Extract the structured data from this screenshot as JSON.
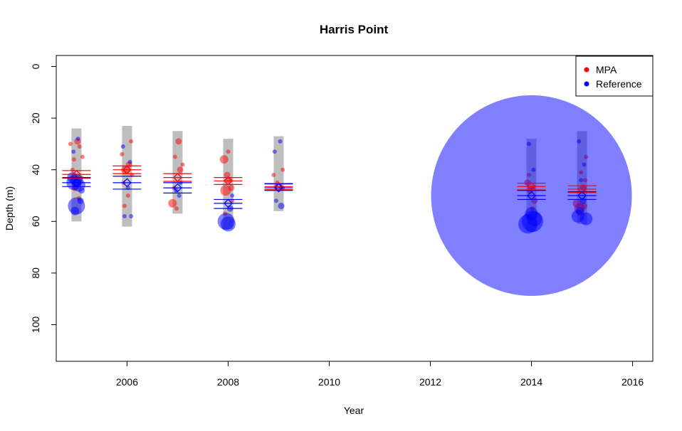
{
  "chart_data": {
    "type": "scatter",
    "title": "Harris Point",
    "xlabel": "Year",
    "ylabel": "Depth (m)",
    "xlim": [
      2004.6,
      2016.4
    ],
    "ylim": [
      0,
      115
    ],
    "y_inverted": true,
    "xticks": [
      2006,
      2008,
      2010,
      2012,
      2014,
      2016
    ],
    "yticks": [
      0,
      20,
      40,
      60,
      80,
      100
    ],
    "legend": {
      "placement": "top-right",
      "entries": [
        {
          "name": "MPA",
          "color": "#ff0000"
        },
        {
          "name": "Reference",
          "color": "#0000ff"
        }
      ]
    },
    "colors": {
      "mpa": "#ff0000",
      "reference": "#0000ff",
      "range_bar": "#bebebe"
    },
    "depth_ranges": [
      {
        "year": 2005,
        "min": 24,
        "max": 60
      },
      {
        "year": 2006,
        "min": 23,
        "max": 62
      },
      {
        "year": 2007,
        "min": 25,
        "max": 57
      },
      {
        "year": 2008,
        "min": 28,
        "max": 63
      },
      {
        "year": 2009,
        "min": 27,
        "max": 56
      },
      {
        "year": 2014,
        "min": 28,
        "max": 64
      },
      {
        "year": 2015,
        "min": 25,
        "max": 61
      }
    ],
    "series": [
      {
        "name": "MPA",
        "means": [
          {
            "year": 2005,
            "mean": 41.8,
            "lo": 40.3,
            "hi": 43.3
          },
          {
            "year": 2006,
            "mean": 40.0,
            "lo": 38.5,
            "hi": 41.5
          },
          {
            "year": 2007,
            "mean": 43.0,
            "lo": 41.5,
            "hi": 44.5
          },
          {
            "year": 2008,
            "mean": 44.3,
            "lo": 43.0,
            "hi": 45.7
          },
          {
            "year": 2009,
            "mean": 46.5,
            "lo": 45.3,
            "hi": 47.7
          },
          {
            "year": 2014,
            "mean": 46.5,
            "lo": 45.2,
            "hi": 47.8
          },
          {
            "year": 2015,
            "mean": 47.5,
            "lo": 46.2,
            "hi": 48.8
          }
        ],
        "points": [
          {
            "x": 2004.88,
            "y": 30,
            "size": 2
          },
          {
            "x": 2004.95,
            "y": 36,
            "size": 2
          },
          {
            "x": 2005.02,
            "y": 29,
            "size": 3
          },
          {
            "x": 2005.06,
            "y": 31,
            "size": 2
          },
          {
            "x": 2004.92,
            "y": 40,
            "size": 2
          },
          {
            "x": 2005.1,
            "y": 43,
            "size": 2
          },
          {
            "x": 2004.97,
            "y": 47,
            "size": 3
          },
          {
            "x": 2005.05,
            "y": 51,
            "size": 2
          },
          {
            "x": 2005.12,
            "y": 35,
            "size": 2
          },
          {
            "x": 2005.9,
            "y": 34,
            "size": 2
          },
          {
            "x": 2005.97,
            "y": 40,
            "size": 4
          },
          {
            "x": 2006.04,
            "y": 38,
            "size": 3
          },
          {
            "x": 2006.08,
            "y": 29,
            "size": 2
          },
          {
            "x": 2005.93,
            "y": 45,
            "size": 2
          },
          {
            "x": 2006.1,
            "y": 42,
            "size": 2
          },
          {
            "x": 2006.02,
            "y": 50,
            "size": 2
          },
          {
            "x": 2005.95,
            "y": 54,
            "size": 2
          },
          {
            "x": 2006.9,
            "y": 53,
            "size": 4
          },
          {
            "x": 2006.95,
            "y": 35,
            "size": 2
          },
          {
            "x": 2007.02,
            "y": 29,
            "size": 3
          },
          {
            "x": 2007.05,
            "y": 40,
            "size": 3
          },
          {
            "x": 2006.93,
            "y": 47,
            "size": 2
          },
          {
            "x": 2007.1,
            "y": 38,
            "size": 2
          },
          {
            "x": 2006.98,
            "y": 55,
            "size": 2
          },
          {
            "x": 2007.92,
            "y": 36,
            "size": 4
          },
          {
            "x": 2007.95,
            "y": 48,
            "size": 5
          },
          {
            "x": 2008.02,
            "y": 44,
            "size": 3
          },
          {
            "x": 2008.06,
            "y": 47,
            "size": 3
          },
          {
            "x": 2008.0,
            "y": 33,
            "size": 2
          },
          {
            "x": 2007.98,
            "y": 42,
            "size": 3
          },
          {
            "x": 2008.08,
            "y": 52,
            "size": 2
          },
          {
            "x": 2007.94,
            "y": 57,
            "size": 2
          },
          {
            "x": 2008.9,
            "y": 42,
            "size": 2
          },
          {
            "x": 2008.97,
            "y": 45,
            "size": 2
          },
          {
            "x": 2009.04,
            "y": 47,
            "size": 2
          },
          {
            "x": 2009.08,
            "y": 40,
            "size": 2
          },
          {
            "x": 2013.92,
            "y": 45,
            "size": 3
          },
          {
            "x": 2013.97,
            "y": 48,
            "size": 3
          },
          {
            "x": 2014.03,
            "y": 47,
            "size": 2
          },
          {
            "x": 2014.06,
            "y": 52,
            "size": 3
          },
          {
            "x": 2013.95,
            "y": 42,
            "size": 2
          },
          {
            "x": 2014.02,
            "y": 55,
            "size": 2
          },
          {
            "x": 2014.9,
            "y": 53,
            "size": 4
          },
          {
            "x": 2014.95,
            "y": 55,
            "size": 5
          },
          {
            "x": 2015.03,
            "y": 47,
            "size": 3
          },
          {
            "x": 2015.06,
            "y": 44,
            "size": 2
          },
          {
            "x": 2014.98,
            "y": 41,
            "size": 2
          },
          {
            "x": 2015.08,
            "y": 35,
            "size": 2
          },
          {
            "x": 2015.04,
            "y": 54,
            "size": 3
          }
        ]
      },
      {
        "name": "Reference",
        "means": [
          {
            "year": 2005,
            "mean": 45.0,
            "lo": 43.0,
            "hi": 46.5
          },
          {
            "year": 2006,
            "mean": 45.0,
            "lo": 42.5,
            "hi": 47.5
          },
          {
            "year": 2007,
            "mean": 47.0,
            "lo": 45.0,
            "hi": 49.0
          },
          {
            "year": 2008,
            "mean": 53.0,
            "lo": 51.5,
            "hi": 55.0
          },
          {
            "year": 2009,
            "mean": 47.0,
            "lo": 45.5,
            "hi": 48.0
          },
          {
            "year": 2014,
            "mean": 50.0,
            "lo": 48.0,
            "hi": 51.5
          },
          {
            "year": 2015,
            "mean": 50.0,
            "lo": 48.5,
            "hi": 51.5
          }
        ],
        "points": [
          {
            "x": 2004.95,
            "y": 45,
            "size": 7
          },
          {
            "x": 2005.0,
            "y": 44,
            "size": 6
          },
          {
            "x": 2005.05,
            "y": 46,
            "size": 6
          },
          {
            "x": 2004.92,
            "y": 43,
            "size": 5
          },
          {
            "x": 2005.0,
            "y": 54,
            "size": 8
          },
          {
            "x": 2004.97,
            "y": 56,
            "size": 4
          },
          {
            "x": 2005.08,
            "y": 52,
            "size": 3
          },
          {
            "x": 2004.94,
            "y": 33,
            "size": 2
          },
          {
            "x": 2005.03,
            "y": 28,
            "size": 2
          },
          {
            "x": 2005.1,
            "y": 48,
            "size": 3
          },
          {
            "x": 2005.95,
            "y": 58,
            "size": 2
          },
          {
            "x": 2006.08,
            "y": 58,
            "size": 2
          },
          {
            "x": 2006.02,
            "y": 47,
            "size": 2
          },
          {
            "x": 2006.06,
            "y": 37,
            "size": 2
          },
          {
            "x": 2005.92,
            "y": 31,
            "size": 2
          },
          {
            "x": 2006.97,
            "y": 48,
            "size": 2
          },
          {
            "x": 2007.03,
            "y": 50,
            "size": 2
          },
          {
            "x": 2007.06,
            "y": 45,
            "size": 2
          },
          {
            "x": 2007.96,
            "y": 60,
            "size": 8
          },
          {
            "x": 2008.0,
            "y": 61,
            "size": 7
          },
          {
            "x": 2008.04,
            "y": 55,
            "size": 3
          },
          {
            "x": 2008.08,
            "y": 50,
            "size": 2
          },
          {
            "x": 2008.95,
            "y": 52,
            "size": 2
          },
          {
            "x": 2009.05,
            "y": 54,
            "size": 3
          },
          {
            "x": 2009.08,
            "y": 47,
            "size": 2
          },
          {
            "x": 2008.92,
            "y": 33,
            "size": 2
          },
          {
            "x": 2009.03,
            "y": 29,
            "size": 2
          },
          {
            "x": 2014.0,
            "y": 50,
            "size": 94
          },
          {
            "x": 2013.93,
            "y": 61,
            "size": 9
          },
          {
            "x": 2014.02,
            "y": 60,
            "size": 10
          },
          {
            "x": 2014.06,
            "y": 59,
            "size": 7
          },
          {
            "x": 2014.0,
            "y": 57,
            "size": 6
          },
          {
            "x": 2013.95,
            "y": 30,
            "size": 2
          },
          {
            "x": 2014.04,
            "y": 40,
            "size": 2
          },
          {
            "x": 2014.92,
            "y": 58,
            "size": 6
          },
          {
            "x": 2015.08,
            "y": 59,
            "size": 6
          },
          {
            "x": 2014.96,
            "y": 56,
            "size": 4
          },
          {
            "x": 2015.02,
            "y": 52,
            "size": 3
          },
          {
            "x": 2014.98,
            "y": 44,
            "size": 2
          },
          {
            "x": 2015.04,
            "y": 38,
            "size": 2
          },
          {
            "x": 2014.94,
            "y": 29,
            "size": 2
          }
        ]
      }
    ]
  }
}
